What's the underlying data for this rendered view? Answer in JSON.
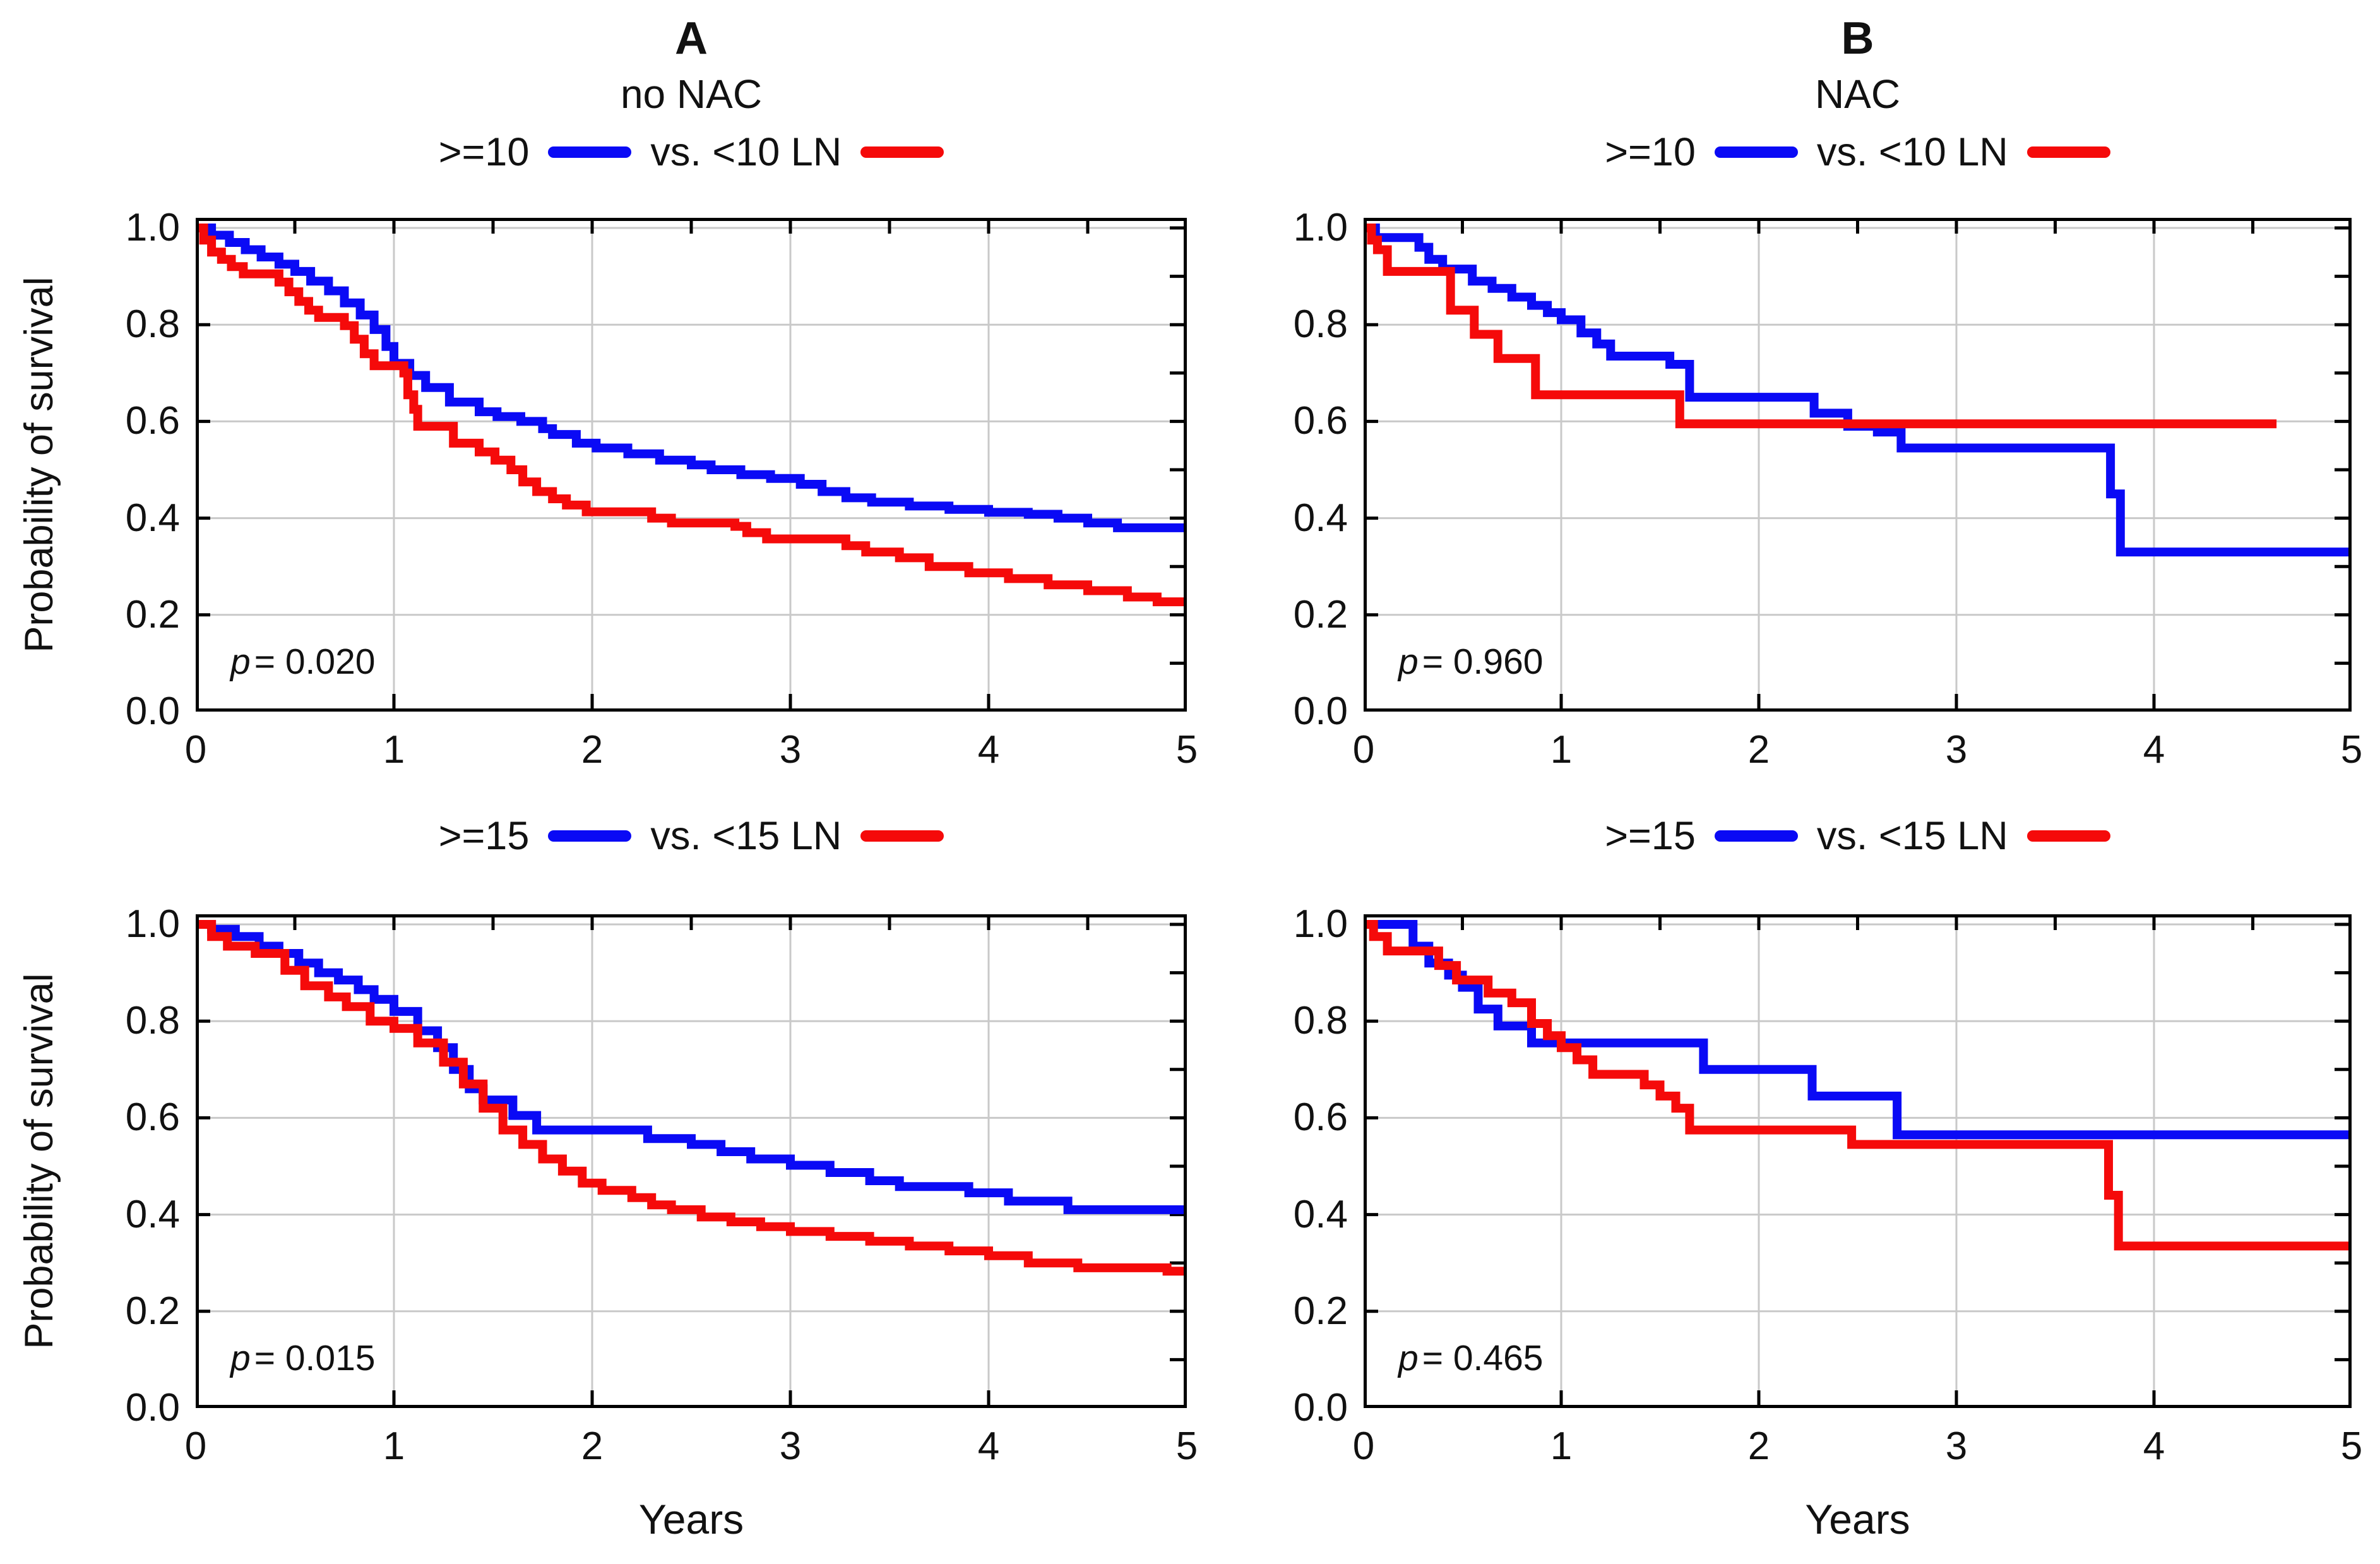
{
  "figure": {
    "ylabel": "Probability of survival",
    "xlabel": "Years",
    "x_tick_labels": [
      "0",
      "1",
      "2",
      "3",
      "4",
      "5"
    ],
    "y_tick_labels": [
      "0.0",
      "0.2",
      "0.4",
      "0.6",
      "0.8",
      "1.0"
    ],
    "colors": {
      "blue": "#0a0af5",
      "red": "#f50a0a",
      "grid": "#c9c9c9",
      "frame": "#000000"
    }
  },
  "chart_data": [
    {
      "type": "step-line",
      "title": "A",
      "subtitle": "no NAC",
      "legend_pre": ">=10",
      "legend_mid": "vs. <10 LN",
      "p_italic": "p",
      "p_rest": "= 0.020",
      "xlabel": "",
      "ylabel": "Probability of survival",
      "xlim": [
        0,
        5
      ],
      "ylim": [
        0,
        1.04
      ],
      "grid": "on",
      "series": [
        {
          "name": ">=10 LN",
          "color": "blue",
          "x": [
            0,
            0.08,
            0.17,
            0.25,
            0.33,
            0.42,
            0.5,
            0.58,
            0.67,
            0.75,
            0.83,
            0.9,
            0.96,
            1.0,
            1.08,
            1.16,
            1.28,
            1.43,
            1.52,
            1.64,
            1.75,
            1.8,
            1.92,
            2.02,
            2.18,
            2.34,
            2.5,
            2.6,
            2.75,
            2.9,
            3.05,
            3.16,
            3.28,
            3.41,
            3.6,
            3.8,
            4.0,
            4.2,
            4.35,
            4.5,
            4.65,
            5.0
          ],
          "y": [
            1.0,
            0.985,
            0.97,
            0.955,
            0.94,
            0.925,
            0.91,
            0.89,
            0.87,
            0.845,
            0.82,
            0.79,
            0.755,
            0.72,
            0.695,
            0.67,
            0.64,
            0.62,
            0.61,
            0.6,
            0.585,
            0.573,
            0.555,
            0.545,
            0.533,
            0.52,
            0.51,
            0.5,
            0.49,
            0.482,
            0.47,
            0.455,
            0.442,
            0.433,
            0.425,
            0.418,
            0.412,
            0.408,
            0.4,
            0.39,
            0.38,
            0.375
          ]
        },
        {
          "name": "<10 LN",
          "color": "red",
          "x": [
            0,
            0.04,
            0.08,
            0.13,
            0.18,
            0.24,
            0.42,
            0.47,
            0.52,
            0.57,
            0.62,
            0.75,
            0.8,
            0.85,
            0.9,
            1.05,
            1.07,
            1.1,
            1.12,
            1.3,
            1.43,
            1.51,
            1.59,
            1.65,
            1.72,
            1.8,
            1.87,
            1.97,
            2.3,
            2.4,
            2.72,
            2.78,
            2.88,
            3.28,
            3.38,
            3.55,
            3.7,
            3.9,
            4.1,
            4.3,
            4.5,
            4.7,
            4.85,
            5.0
          ],
          "y": [
            1.0,
            0.975,
            0.95,
            0.935,
            0.92,
            0.905,
            0.888,
            0.868,
            0.848,
            0.83,
            0.815,
            0.798,
            0.77,
            0.74,
            0.715,
            0.7,
            0.655,
            0.625,
            0.59,
            0.555,
            0.537,
            0.52,
            0.5,
            0.475,
            0.455,
            0.44,
            0.427,
            0.413,
            0.4,
            0.39,
            0.383,
            0.37,
            0.357,
            0.343,
            0.33,
            0.318,
            0.3,
            0.287,
            0.275,
            0.262,
            0.25,
            0.237,
            0.227,
            0.225
          ]
        }
      ]
    },
    {
      "type": "step-line",
      "title": "B",
      "subtitle": "NAC",
      "legend_pre": ">=10",
      "legend_mid": "vs. <10 LN",
      "p_italic": "p",
      "p_rest": "= 0.960",
      "xlabel": "",
      "ylabel": "",
      "xlim": [
        0,
        5
      ],
      "ylim": [
        0,
        1.04
      ],
      "grid": "on",
      "series": [
        {
          "name": ">=10 LN",
          "color": "blue",
          "x": [
            0,
            0.06,
            0.28,
            0.33,
            0.4,
            0.55,
            0.65,
            0.75,
            0.85,
            0.93,
            1.0,
            1.1,
            1.18,
            1.25,
            1.55,
            1.65,
            2.28,
            2.45,
            2.6,
            2.72,
            3.78,
            3.83,
            5.0
          ],
          "y": [
            1.0,
            0.98,
            0.96,
            0.935,
            0.915,
            0.89,
            0.875,
            0.857,
            0.84,
            0.825,
            0.81,
            0.783,
            0.76,
            0.735,
            0.718,
            0.65,
            0.617,
            0.59,
            0.578,
            0.545,
            0.45,
            0.33,
            0.33
          ]
        },
        {
          "name": "<10 LN",
          "color": "red",
          "x": [
            0,
            0.04,
            0.07,
            0.12,
            0.44,
            0.56,
            0.68,
            0.87,
            1.6,
            4.62
          ],
          "y": [
            1.0,
            0.975,
            0.955,
            0.91,
            0.83,
            0.78,
            0.73,
            0.655,
            0.595,
            0.595
          ]
        }
      ]
    },
    {
      "type": "step-line",
      "title": "",
      "subtitle": "",
      "legend_pre": ">=15",
      "legend_mid": "vs. <15 LN",
      "p_italic": "p",
      "p_rest": "= 0.015",
      "xlabel": "Years",
      "ylabel": "Probability of survival",
      "xlim": [
        0,
        5
      ],
      "ylim": [
        0,
        1.04
      ],
      "grid": "on",
      "series": [
        {
          "name": ">=15 LN",
          "color": "blue",
          "x": [
            0,
            0.08,
            0.2,
            0.32,
            0.42,
            0.52,
            0.62,
            0.72,
            0.82,
            0.9,
            1.0,
            1.12,
            1.22,
            1.3,
            1.38,
            1.45,
            1.6,
            1.72,
            2.28,
            2.5,
            2.65,
            2.8,
            3.0,
            3.2,
            3.4,
            3.55,
            3.9,
            4.1,
            4.4,
            5.0
          ],
          "y": [
            1.0,
            0.99,
            0.975,
            0.955,
            0.94,
            0.92,
            0.9,
            0.885,
            0.865,
            0.845,
            0.82,
            0.78,
            0.745,
            0.7,
            0.66,
            0.637,
            0.605,
            0.575,
            0.557,
            0.545,
            0.53,
            0.515,
            0.502,
            0.487,
            0.47,
            0.458,
            0.445,
            0.428,
            0.41,
            0.41
          ]
        },
        {
          "name": "<15 LN",
          "color": "red",
          "x": [
            0,
            0.08,
            0.16,
            0.3,
            0.45,
            0.55,
            0.67,
            0.76,
            0.88,
            1.0,
            1.12,
            1.25,
            1.35,
            1.45,
            1.55,
            1.65,
            1.75,
            1.85,
            1.95,
            2.05,
            2.2,
            2.3,
            2.4,
            2.55,
            2.7,
            2.85,
            3.0,
            3.2,
            3.4,
            3.6,
            3.8,
            4.0,
            4.2,
            4.45,
            4.9,
            5.0
          ],
          "y": [
            1.0,
            0.975,
            0.955,
            0.94,
            0.905,
            0.873,
            0.85,
            0.83,
            0.8,
            0.785,
            0.755,
            0.715,
            0.67,
            0.62,
            0.575,
            0.545,
            0.515,
            0.49,
            0.465,
            0.45,
            0.435,
            0.42,
            0.41,
            0.395,
            0.385,
            0.375,
            0.365,
            0.355,
            0.345,
            0.335,
            0.325,
            0.315,
            0.3,
            0.29,
            0.283,
            0.28
          ]
        }
      ]
    },
    {
      "type": "step-line",
      "title": "",
      "subtitle": "",
      "legend_pre": ">=15",
      "legend_mid": "vs. <15 LN",
      "p_italic": "p",
      "p_rest": "= 0.465",
      "xlabel": "Years",
      "ylabel": "",
      "xlim": [
        0,
        5
      ],
      "ylim": [
        0,
        1.04
      ],
      "grid": "on",
      "series": [
        {
          "name": ">=15 LN",
          "color": "blue",
          "x": [
            0,
            0.25,
            0.33,
            0.43,
            0.5,
            0.58,
            0.68,
            0.85,
            1.72,
            2.27,
            2.7,
            5.0
          ],
          "y": [
            1.0,
            0.955,
            0.92,
            0.895,
            0.87,
            0.825,
            0.79,
            0.755,
            0.7,
            0.645,
            0.565,
            0.565
          ]
        },
        {
          "name": "<15 LN",
          "color": "red",
          "x": [
            0,
            0.05,
            0.12,
            0.38,
            0.47,
            0.63,
            0.75,
            0.85,
            0.93,
            1.0,
            1.08,
            1.16,
            1.42,
            1.5,
            1.58,
            1.65,
            2.47,
            3.77,
            3.82,
            5.0
          ],
          "y": [
            1.0,
            0.975,
            0.945,
            0.915,
            0.885,
            0.858,
            0.838,
            0.795,
            0.77,
            0.745,
            0.72,
            0.69,
            0.668,
            0.645,
            0.62,
            0.575,
            0.545,
            0.44,
            0.335,
            0.335
          ]
        }
      ]
    }
  ]
}
